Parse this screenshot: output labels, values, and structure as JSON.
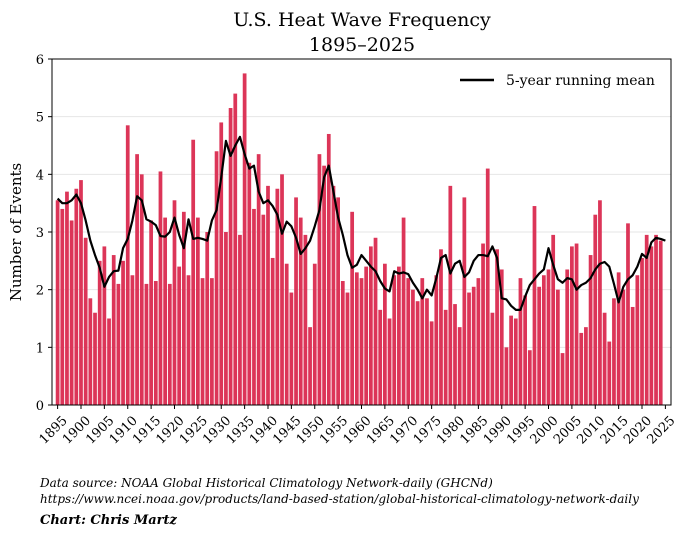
{
  "chart_data": {
    "type": "bar",
    "title": "U.S. Heat Wave Frequency",
    "subtitle": "1895–2025",
    "xlabel": "",
    "ylabel": "Number of Events",
    "ylim": [
      0,
      6
    ],
    "yticks": [
      0,
      1,
      2,
      3,
      4,
      5,
      6
    ],
    "xticks": [
      1895,
      1900,
      1905,
      1910,
      1915,
      1920,
      1925,
      1930,
      1935,
      1940,
      1945,
      1950,
      1955,
      1960,
      1965,
      1970,
      1975,
      1980,
      1985,
      1990,
      1995,
      2000,
      2005,
      2010,
      2015,
      2020,
      2025
    ],
    "x_start": 1895,
    "x_end": 2025,
    "grid": "horizontal",
    "legend_position": "top-right",
    "bar_color": "#dc3558",
    "line_color": "#000000",
    "series": [
      {
        "name": "Annual events",
        "type": "bar",
        "values": [
          3.55,
          3.4,
          3.7,
          3.2,
          3.75,
          3.9,
          2.9,
          1.85,
          1.6,
          2.5,
          2.75,
          1.5,
          2.6,
          2.1,
          2.5,
          4.85,
          2.25,
          4.35,
          4.0,
          2.1,
          3.2,
          2.15,
          4.05,
          3.25,
          2.1,
          3.55,
          2.4,
          3.35,
          2.25,
          4.6,
          3.25,
          2.2,
          3.0,
          2.2,
          4.4,
          4.9,
          3.0,
          5.15,
          5.4,
          2.95,
          5.75,
          4.2,
          3.4,
          4.35,
          3.3,
          3.8,
          2.55,
          3.75,
          4.0,
          2.45,
          1.95,
          3.6,
          3.25,
          2.95,
          1.35,
          2.45,
          4.35,
          4.15,
          4.7,
          3.8,
          3.6,
          2.15,
          1.95,
          3.35,
          2.3,
          2.2,
          2.4,
          2.75,
          2.9,
          1.65,
          2.45,
          1.5,
          2.25,
          2.4,
          3.25,
          2.2,
          2.0,
          1.8,
          2.2,
          1.85,
          1.45,
          2.25,
          2.7,
          1.65,
          3.8,
          1.75,
          1.35,
          3.6,
          1.95,
          2.05,
          2.2,
          2.8,
          4.1,
          1.6,
          2.7,
          2.35,
          1.0,
          1.55,
          1.5,
          2.2,
          1.9,
          0.95,
          3.45,
          2.05,
          2.25,
          2.35,
          2.95,
          2.0,
          0.9,
          2.35,
          2.75,
          2.8,
          1.25,
          1.35,
          2.6,
          3.3,
          3.55,
          1.6,
          1.1,
          1.85,
          2.3,
          2.0,
          3.15,
          1.7,
          2.25,
          2.55,
          2.95,
          2.75,
          2.95,
          2.85
        ]
      },
      {
        "name": "5-year running mean",
        "type": "line",
        "values": [
          3.58,
          3.5,
          3.5,
          3.55,
          3.65,
          3.5,
          3.2,
          2.85,
          2.6,
          2.38,
          2.05,
          2.22,
          2.32,
          2.33,
          2.72,
          2.88,
          3.2,
          3.62,
          3.55,
          3.22,
          3.18,
          3.12,
          2.93,
          2.92,
          3.0,
          3.25,
          2.95,
          2.72,
          3.22,
          2.88,
          2.9,
          2.88,
          2.85,
          3.2,
          3.38,
          3.95,
          4.58,
          4.32,
          4.5,
          4.65,
          4.35,
          4.1,
          4.15,
          3.7,
          3.5,
          3.55,
          3.45,
          3.3,
          2.97,
          3.18,
          3.1,
          2.9,
          2.62,
          2.72,
          2.85,
          3.1,
          3.38,
          3.95,
          4.15,
          3.7,
          3.25,
          2.95,
          2.6,
          2.38,
          2.43,
          2.6,
          2.5,
          2.4,
          2.32,
          2.15,
          2.02,
          1.97,
          2.32,
          2.28,
          2.3,
          2.27,
          2.12,
          2.0,
          1.85,
          2.0,
          1.9,
          2.2,
          2.55,
          2.6,
          2.28,
          2.45,
          2.5,
          2.22,
          2.3,
          2.5,
          2.6,
          2.6,
          2.58,
          2.75,
          2.55,
          1.85,
          1.83,
          1.72,
          1.65,
          1.65,
          1.88,
          2.08,
          2.18,
          2.28,
          2.35,
          2.72,
          2.43,
          2.18,
          2.12,
          2.2,
          2.18,
          2.0,
          2.08,
          2.12,
          2.2,
          2.35,
          2.45,
          2.48,
          2.4,
          2.1,
          1.78,
          2.05,
          2.18,
          2.25,
          2.4,
          2.62,
          2.55,
          2.82,
          2.9,
          2.88,
          2.85
        ]
      }
    ]
  },
  "legend": {
    "label": "5-year running mean"
  },
  "footer": {
    "source": "Data source: NOAA Global Historical Climatology Network-daily (GHCNd)",
    "url": "https://www.ncei.noaa.gov/products/land-based-station/global-historical-climatology-network-daily",
    "credit": "Chart: Chris Martz"
  }
}
